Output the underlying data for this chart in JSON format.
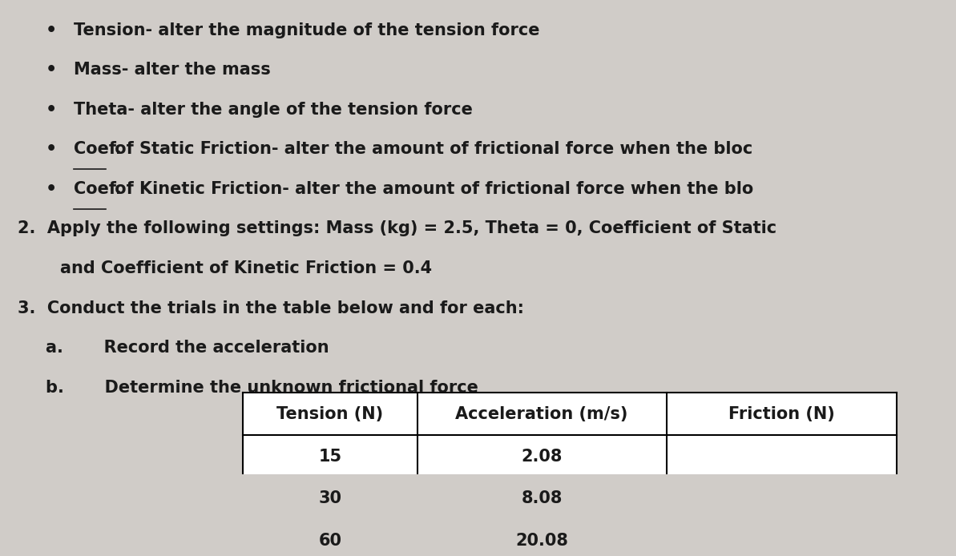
{
  "bg_color": "#d0ccc8",
  "text_color": "#1a1a1a",
  "bullet_items": [
    "Tension- alter the magnitude of the tension force",
    "Mass- alter the mass",
    "Theta- alter the angle of the tension force",
    "Coef. of Static Friction- alter the amount of frictional force when the bloc",
    "Coef. of Kinetic Friction- alter the amount of frictional force when the blo"
  ],
  "point2_line1": "2.  Apply the following settings: Mass (kg) = 2.5, Theta = 0, Coefficient of Static",
  "point2_line2": "and Coefficient of Kinetic Friction = 0.4",
  "point3": "3.  Conduct the trials in the table below and for each:",
  "sub_a": "a.       Record the acceleration",
  "sub_b": "b.       Determine the unknown frictional force",
  "table_headers": [
    "Tension (N)",
    "Acceleration (m/s)",
    "Friction (N)"
  ],
  "table_data": [
    [
      "15",
      "2.08",
      ""
    ],
    [
      "30",
      "8.08",
      ""
    ],
    [
      "60",
      "20.08",
      ""
    ]
  ],
  "font_size": 15,
  "font_family": "DejaVu Sans"
}
